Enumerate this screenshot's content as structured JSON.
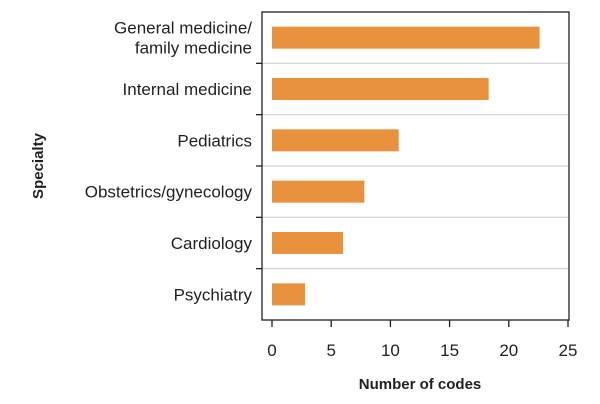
{
  "chart_data": {
    "type": "bar",
    "orientation": "horizontal",
    "categories": [
      [
        "General medicine/",
        "family medicine"
      ],
      [
        "Internal medicine"
      ],
      [
        "Pediatrics"
      ],
      [
        "Obstetrics/gynecology"
      ],
      [
        "Cardiology"
      ],
      [
        "Psychiatry"
      ]
    ],
    "values": [
      22.6,
      18.3,
      10.7,
      7.8,
      6.0,
      2.8
    ],
    "xlabel": "Number of codes",
    "ylabel": "Specialty",
    "xlim": [
      0,
      25
    ],
    "xticks": [
      "0",
      "5",
      "10",
      "15",
      "20",
      "25"
    ],
    "grid": "horizontal dividers between categories",
    "bar_color": "#e8923e",
    "axis_color": "#231f20",
    "grid_color": "#cfd0d2"
  }
}
